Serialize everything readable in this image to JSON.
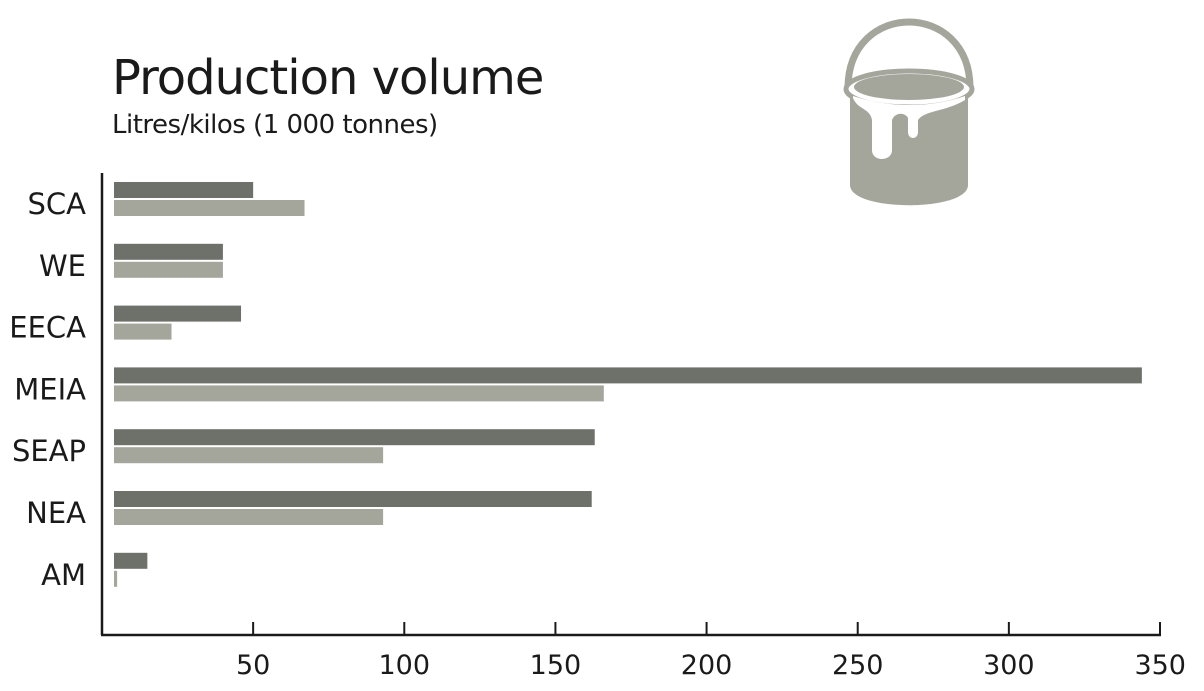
{
  "chart_data": {
    "type": "bar",
    "orientation": "horizontal",
    "title": "Production volume",
    "subtitle": "Litres/kilos (1 000 tonnes)",
    "xlabel": "",
    "ylabel": "",
    "categories": [
      "SCA",
      "WE",
      "EECA",
      "MEIA",
      "SEAP",
      "NEA",
      "AM"
    ],
    "series": [
      {
        "values": [
          50,
          40,
          46,
          344,
          163,
          162,
          15
        ]
      },
      {
        "values": [
          67,
          40,
          23,
          166,
          93,
          93,
          5
        ]
      }
    ],
    "xlim": [
      0,
      350
    ],
    "xticks": [
      50,
      100,
      150,
      200,
      250,
      300,
      350
    ],
    "grid": false,
    "legend": "none",
    "colors": [
      "#6e706a",
      "#a4a69c"
    ]
  },
  "decoration": {
    "icon": "paint-bucket-icon",
    "color": "#a4a69c"
  }
}
